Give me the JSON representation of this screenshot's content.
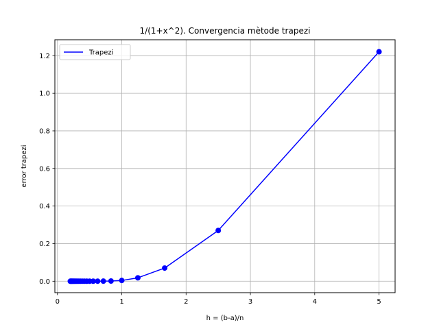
{
  "chart_data": {
    "type": "line",
    "title": "1/(1+x^2). Convergencia mètode trapezi",
    "xlabel": "h = (b-a)/n",
    "ylabel": "error trapezi",
    "xlim": [
      -0.04,
      5.25
    ],
    "ylim": [
      -0.061,
      1.285
    ],
    "xticks": [
      0,
      1,
      2,
      3,
      4,
      5
    ],
    "xtick_labels": [
      "0",
      "1",
      "2",
      "3",
      "4",
      "5"
    ],
    "yticks": [
      0.0,
      0.2,
      0.4,
      0.6,
      0.8,
      1.0,
      1.2
    ],
    "ytick_labels": [
      "0.0",
      "0.2",
      "0.4",
      "0.6",
      "0.8",
      "1.0",
      "1.2"
    ],
    "grid": true,
    "legend_position": "upper-left",
    "series": [
      {
        "name": "Trapezi",
        "color": "#0000ff",
        "marker": "circle",
        "x": [
          5.0,
          2.5,
          1.667,
          1.25,
          1.0,
          0.833,
          0.714,
          0.625,
          0.556,
          0.5,
          0.455,
          0.417,
          0.385,
          0.357,
          0.333,
          0.3125,
          0.294,
          0.278,
          0.263,
          0.25,
          0.238,
          0.227,
          0.217,
          0.208,
          0.2
        ],
        "y": [
          1.221,
          0.27,
          0.07,
          0.018,
          0.004,
          0.001,
          0.0004,
          0.0002,
          0.0001,
          5e-05,
          3e-05,
          2e-05,
          1e-05,
          1e-05,
          0.0,
          0.0,
          0.0,
          0.0,
          0.0,
          0.0,
          0.0,
          0.0,
          0.0,
          0.0,
          0.0
        ]
      }
    ]
  }
}
